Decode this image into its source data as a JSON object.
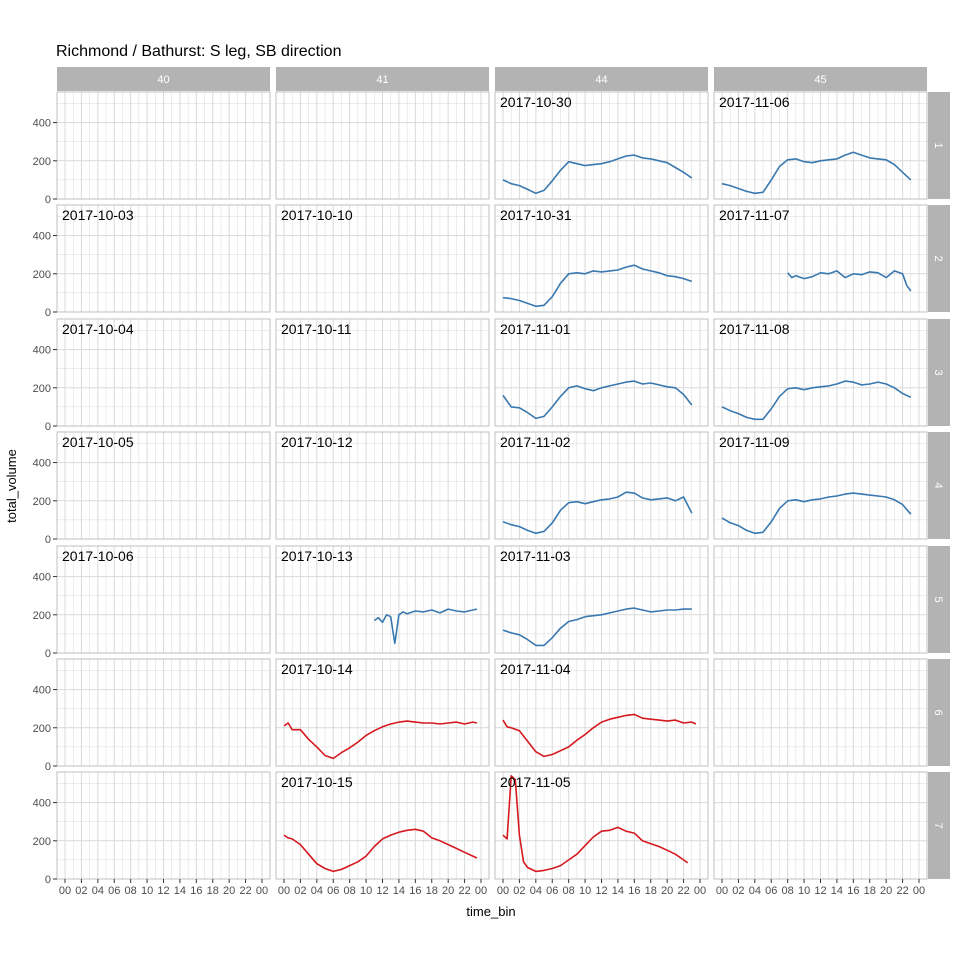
{
  "chart_data": {
    "type": "line",
    "title": "Richmond / Bathurst: S leg, SB direction",
    "xlabel": "time_bin",
    "ylabel": "total_volume",
    "facet_cols": [
      "40",
      "41",
      "44",
      "45"
    ],
    "facet_rows": [
      "1",
      "2",
      "3",
      "4",
      "5",
      "6",
      "7"
    ],
    "x_range_hours": [
      0,
      24
    ],
    "x_ticks": [
      "00",
      "02",
      "04",
      "06",
      "08",
      "10",
      "12",
      "14",
      "16",
      "18",
      "20",
      "22",
      "00"
    ],
    "ylim": [
      0,
      560
    ],
    "y_ticks": [
      0,
      200,
      400
    ],
    "grid": true,
    "colors": {
      "weekday": "#3a78b0",
      "weekend": "#d4191f",
      "strip": "#b3b3b3",
      "grid": "#d9d9d9",
      "border": "#bfbfbf"
    },
    "panels": [
      {
        "col": "40",
        "row": "2",
        "date": "2017-10-03"
      },
      {
        "col": "40",
        "row": "3",
        "date": "2017-10-04"
      },
      {
        "col": "40",
        "row": "4",
        "date": "2017-10-05"
      },
      {
        "col": "40",
        "row": "5",
        "date": "2017-10-06"
      },
      {
        "col": "41",
        "row": "2",
        "date": "2017-10-10"
      },
      {
        "col": "41",
        "row": "3",
        "date": "2017-10-11"
      },
      {
        "col": "41",
        "row": "4",
        "date": "2017-10-12"
      },
      {
        "col": "41",
        "row": "5",
        "date": "2017-10-13",
        "series": "weekday",
        "x": [
          11.0,
          11.5,
          12.0,
          12.5,
          13.0,
          13.5,
          14.0,
          14.5,
          15.0,
          16.0,
          17.0,
          18.0,
          19.0,
          20.0,
          21.0,
          22.0,
          23.0,
          23.5
        ],
        "y": [
          170,
          185,
          160,
          200,
          190,
          50,
          200,
          215,
          205,
          220,
          215,
          225,
          210,
          230,
          220,
          215,
          225,
          230
        ]
      },
      {
        "col": "41",
        "row": "6",
        "date": "2017-10-14",
        "series": "weekend",
        "x": [
          0.0,
          0.5,
          1.0,
          2.0,
          3.0,
          4.0,
          5.0,
          6.0,
          7.0,
          8.0,
          9.0,
          10.0,
          11.0,
          12.0,
          13.0,
          14.0,
          15.0,
          16.0,
          17.0,
          18.0,
          19.0,
          20.0,
          21.0,
          22.0,
          23.0,
          23.5
        ],
        "y": [
          210,
          225,
          190,
          190,
          140,
          100,
          55,
          40,
          70,
          95,
          125,
          160,
          185,
          205,
          220,
          230,
          235,
          230,
          225,
          225,
          220,
          225,
          230,
          220,
          230,
          225
        ]
      },
      {
        "col": "41",
        "row": "7",
        "date": "2017-10-15",
        "series": "weekend",
        "x": [
          0.0,
          0.5,
          1.0,
          2.0,
          3.0,
          4.0,
          5.0,
          6.0,
          7.0,
          8.0,
          9.0,
          10.0,
          11.0,
          12.0,
          13.0,
          14.0,
          15.0,
          16.0,
          17.0,
          18.0,
          19.0,
          20.0,
          21.0,
          22.0,
          23.0,
          23.5
        ],
        "y": [
          230,
          215,
          210,
          180,
          130,
          80,
          55,
          40,
          50,
          70,
          90,
          120,
          170,
          210,
          230,
          245,
          255,
          260,
          250,
          215,
          200,
          180,
          160,
          140,
          120,
          110
        ]
      },
      {
        "col": "44",
        "row": "1",
        "date": "2017-10-30",
        "series": "weekday",
        "x": [
          0.0,
          1.0,
          2.0,
          3.0,
          4.0,
          5.0,
          6.0,
          7.0,
          8.0,
          9.0,
          10.0,
          11.0,
          12.0,
          13.0,
          14.0,
          15.0,
          16.0,
          17.0,
          18.0,
          19.0,
          20.0,
          21.0,
          22.0,
          23.0
        ],
        "y": [
          100,
          80,
          70,
          50,
          30,
          45,
          95,
          150,
          195,
          185,
          175,
          180,
          185,
          195,
          210,
          225,
          230,
          215,
          210,
          200,
          190,
          165,
          140,
          110
        ]
      },
      {
        "col": "44",
        "row": "2",
        "date": "2017-10-31",
        "series": "weekday",
        "x": [
          0.0,
          1.0,
          2.0,
          3.0,
          4.0,
          5.0,
          6.0,
          7.0,
          8.0,
          9.0,
          10.0,
          11.0,
          12.0,
          13.0,
          14.0,
          15.0,
          16.0,
          17.0,
          18.0,
          19.0,
          20.0,
          21.0,
          22.0,
          23.0
        ],
        "y": [
          75,
          70,
          60,
          45,
          30,
          35,
          80,
          150,
          200,
          205,
          200,
          215,
          210,
          215,
          220,
          235,
          245,
          225,
          215,
          205,
          190,
          185,
          175,
          160
        ]
      },
      {
        "col": "44",
        "row": "3",
        "date": "2017-11-01",
        "series": "weekday",
        "x": [
          0.0,
          1.0,
          2.0,
          3.0,
          4.0,
          5.0,
          6.0,
          7.0,
          8.0,
          9.0,
          10.0,
          11.0,
          12.0,
          13.0,
          14.0,
          15.0,
          16.0,
          17.0,
          18.0,
          19.0,
          20.0,
          21.0,
          22.0,
          23.0
        ],
        "y": [
          160,
          100,
          95,
          70,
          40,
          50,
          100,
          155,
          200,
          210,
          195,
          185,
          200,
          210,
          220,
          230,
          235,
          220,
          225,
          215,
          205,
          200,
          165,
          110
        ]
      },
      {
        "col": "44",
        "row": "4",
        "date": "2017-11-02",
        "series": "weekday",
        "x": [
          0.0,
          1.0,
          2.0,
          3.0,
          4.0,
          5.0,
          6.0,
          7.0,
          8.0,
          9.0,
          10.0,
          11.0,
          12.0,
          13.0,
          14.0,
          15.0,
          16.0,
          17.0,
          18.0,
          19.0,
          20.0,
          21.0,
          22.0,
          23.0
        ],
        "y": [
          90,
          75,
          65,
          45,
          30,
          40,
          85,
          150,
          190,
          195,
          185,
          195,
          205,
          210,
          220,
          245,
          240,
          215,
          205,
          210,
          215,
          200,
          220,
          135
        ]
      },
      {
        "col": "44",
        "row": "5",
        "date": "2017-11-03",
        "series": "weekday",
        "x": [
          0.0,
          1.0,
          2.0,
          3.0,
          4.0,
          5.0,
          6.0,
          7.0,
          8.0,
          9.0,
          10.0,
          11.0,
          12.0,
          13.0,
          14.0,
          15.0,
          16.0,
          17.0,
          18.0,
          19.0,
          20.0,
          21.0,
          22.0,
          23.0
        ],
        "y": [
          120,
          105,
          95,
          70,
          40,
          40,
          80,
          130,
          165,
          175,
          190,
          195,
          200,
          210,
          220,
          230,
          235,
          225,
          215,
          220,
          225,
          225,
          230,
          230
        ]
      },
      {
        "col": "44",
        "row": "6",
        "date": "2017-11-04",
        "series": "weekend",
        "x": [
          0.0,
          0.5,
          1.0,
          2.0,
          3.0,
          4.0,
          5.0,
          6.0,
          7.0,
          8.0,
          9.0,
          10.0,
          11.0,
          12.0,
          13.0,
          14.0,
          15.0,
          16.0,
          17.0,
          18.0,
          19.0,
          20.0,
          21.0,
          22.0,
          23.0,
          23.5
        ],
        "y": [
          240,
          205,
          200,
          185,
          130,
          75,
          50,
          60,
          80,
          100,
          135,
          165,
          200,
          230,
          245,
          255,
          265,
          270,
          250,
          245,
          240,
          235,
          240,
          225,
          230,
          220
        ]
      },
      {
        "col": "44",
        "row": "7",
        "date": "2017-11-05",
        "series": "weekend",
        "x": [
          0.0,
          0.5,
          1.0,
          1.5,
          2.0,
          2.5,
          3.0,
          4.0,
          5.0,
          6.0,
          7.0,
          8.0,
          9.0,
          10.0,
          11.0,
          12.0,
          13.0,
          14.0,
          15.0,
          16.0,
          17.0,
          18.0,
          19.0,
          20.0,
          21.0,
          22.0,
          22.5
        ],
        "y": [
          230,
          210,
          540,
          520,
          230,
          90,
          60,
          40,
          45,
          55,
          70,
          100,
          130,
          175,
          220,
          250,
          255,
          270,
          250,
          240,
          200,
          185,
          170,
          150,
          130,
          100,
          85
        ]
      },
      {
        "col": "45",
        "row": "1",
        "date": "2017-11-06",
        "series": "weekday",
        "x": [
          0.0,
          1.0,
          2.0,
          3.0,
          4.0,
          5.0,
          6.0,
          7.0,
          8.0,
          9.0,
          10.0,
          11.0,
          12.0,
          13.0,
          14.0,
          15.0,
          16.0,
          17.0,
          18.0,
          19.0,
          20.0,
          21.0,
          22.0,
          23.0
        ],
        "y": [
          80,
          70,
          55,
          40,
          30,
          35,
          100,
          170,
          205,
          210,
          195,
          190,
          200,
          205,
          210,
          230,
          245,
          230,
          215,
          210,
          205,
          180,
          140,
          100
        ]
      },
      {
        "col": "45",
        "row": "2",
        "date": "2017-11-07",
        "series": "weekday",
        "x": [
          8.0,
          8.5,
          9.0,
          10.0,
          11.0,
          12.0,
          13.0,
          14.0,
          15.0,
          16.0,
          17.0,
          18.0,
          19.0,
          20.0,
          21.0,
          22.0,
          22.5,
          23.0
        ],
        "y": [
          205,
          180,
          190,
          175,
          185,
          205,
          200,
          215,
          180,
          200,
          195,
          210,
          205,
          180,
          215,
          200,
          140,
          110
        ]
      },
      {
        "col": "45",
        "row": "3",
        "date": "2017-11-08",
        "series": "weekday",
        "x": [
          0.0,
          1.0,
          2.0,
          3.0,
          4.0,
          5.0,
          6.0,
          7.0,
          8.0,
          9.0,
          10.0,
          11.0,
          12.0,
          13.0,
          14.0,
          15.0,
          16.0,
          17.0,
          18.0,
          19.0,
          20.0,
          21.0,
          22.0,
          23.0
        ],
        "y": [
          100,
          80,
          65,
          45,
          35,
          35,
          90,
          155,
          195,
          200,
          190,
          200,
          205,
          210,
          220,
          235,
          230,
          215,
          220,
          230,
          220,
          200,
          170,
          150
        ]
      },
      {
        "col": "45",
        "row": "4",
        "date": "2017-11-09",
        "series": "weekday",
        "x": [
          0.0,
          1.0,
          2.0,
          3.0,
          4.0,
          5.0,
          6.0,
          7.0,
          8.0,
          9.0,
          10.0,
          11.0,
          12.0,
          13.0,
          14.0,
          15.0,
          16.0,
          17.0,
          18.0,
          19.0,
          20.0,
          21.0,
          22.0,
          23.0
        ],
        "y": [
          110,
          85,
          70,
          45,
          30,
          35,
          90,
          160,
          200,
          205,
          195,
          205,
          210,
          220,
          225,
          235,
          240,
          235,
          230,
          225,
          220,
          205,
          180,
          130
        ]
      }
    ]
  }
}
